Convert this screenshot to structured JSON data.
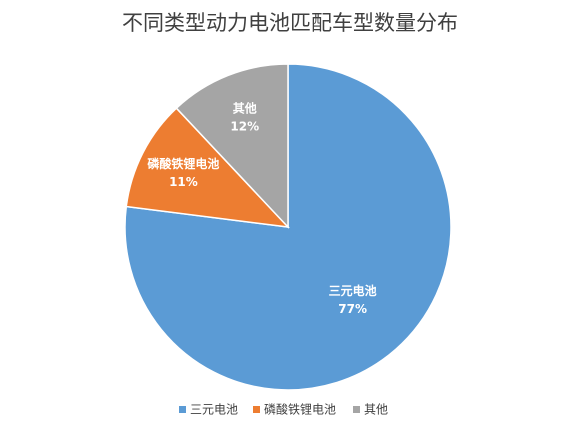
{
  "chart_data": {
    "type": "pie",
    "title": "不同类型动力电池匹配车型数量分布",
    "categories": [
      "三元电池",
      "磷酸铁锂电池",
      "其他"
    ],
    "values": [
      77,
      11,
      12
    ],
    "value_labels": [
      "77%",
      "11%",
      "12%"
    ],
    "colors": [
      "#5b9bd5",
      "#ed7d31",
      "#a5a5a5"
    ]
  }
}
